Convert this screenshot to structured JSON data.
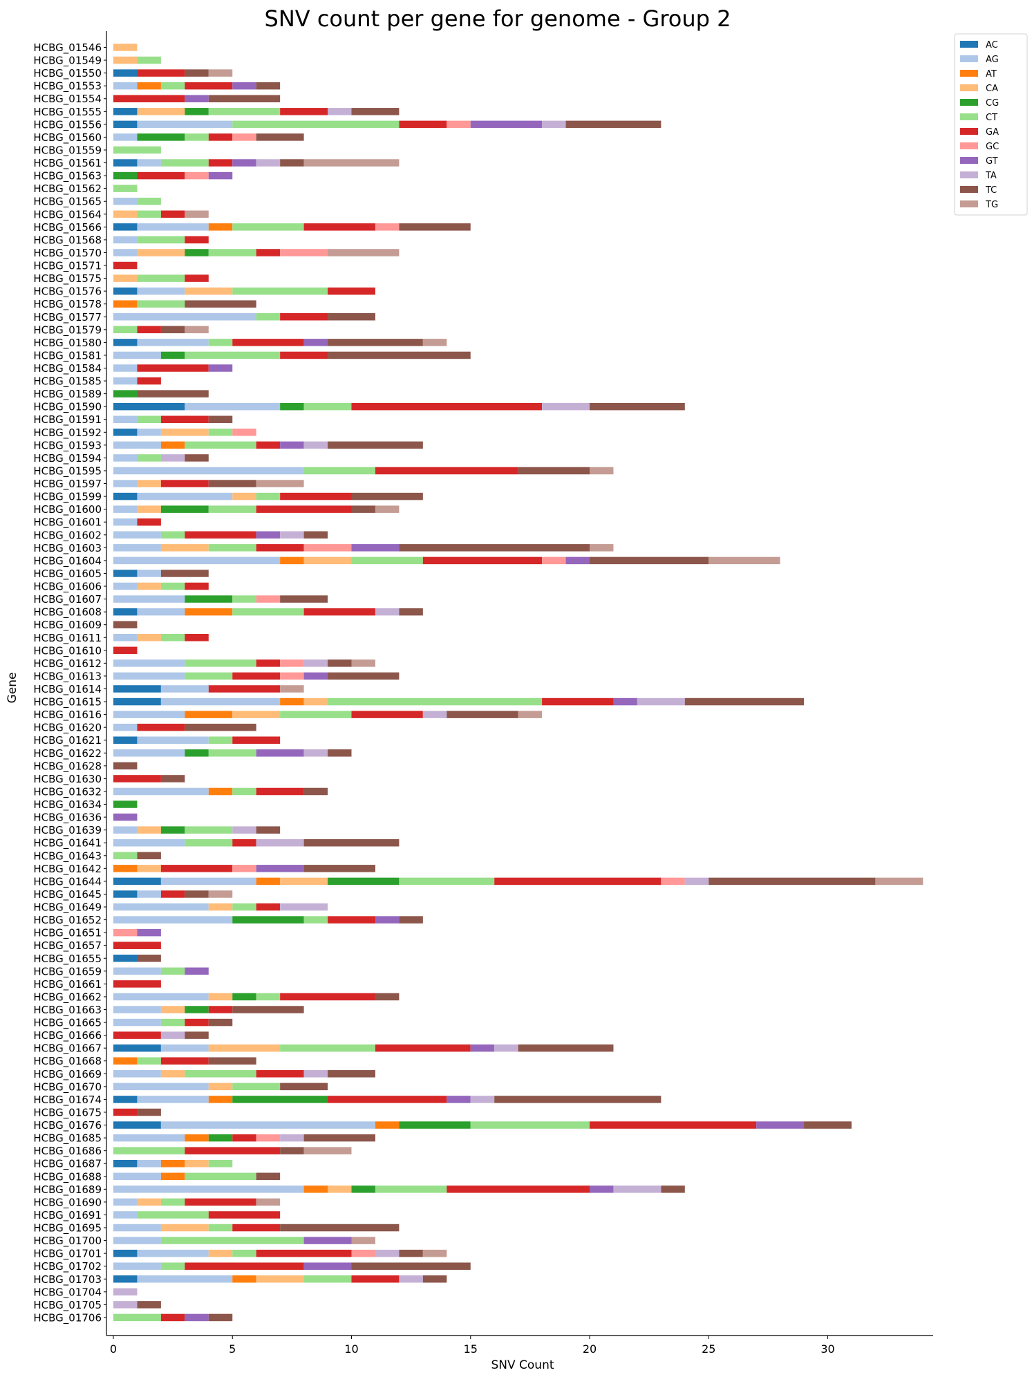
{
  "chart_data": {
    "type": "bar",
    "orientation": "horizontal",
    "stacked": true,
    "title": "SNV count per gene for genome - Group 2",
    "xlabel": "SNV Count",
    "ylabel": "Gene",
    "xlim": [
      0,
      34.4
    ],
    "xticks": [
      0,
      5,
      10,
      15,
      20,
      25,
      30
    ],
    "grid": false,
    "legend_position": "top-right, outside plot",
    "series_names": [
      "AC",
      "AG",
      "AT",
      "CA",
      "CG",
      "CT",
      "GA",
      "GC",
      "GT",
      "TA",
      "TC",
      "TG"
    ],
    "colors": [
      "#1f77b4",
      "#aec7e8",
      "#ff7f0e",
      "#ffbb78",
      "#2ca02c",
      "#98df8a",
      "#d62728",
      "#ff9896",
      "#9467bd",
      "#c5b0d5",
      "#8c564b",
      "#c49c94"
    ],
    "categories": [
      "HCBG_01546",
      "HCBG_01549",
      "HCBG_01550",
      "HCBG_01553",
      "HCBG_01554",
      "HCBG_01555",
      "HCBG_01556",
      "HCBG_01560",
      "HCBG_01559",
      "HCBG_01561",
      "HCBG_01563",
      "HCBG_01562",
      "HCBG_01565",
      "HCBG_01564",
      "HCBG_01566",
      "HCBG_01568",
      "HCBG_01570",
      "HCBG_01571",
      "HCBG_01575",
      "HCBG_01576",
      "HCBG_01578",
      "HCBG_01577",
      "HCBG_01579",
      "HCBG_01580",
      "HCBG_01581",
      "HCBG_01584",
      "HCBG_01585",
      "HCBG_01589",
      "HCBG_01590",
      "HCBG_01591",
      "HCBG_01592",
      "HCBG_01593",
      "HCBG_01594",
      "HCBG_01595",
      "HCBG_01597",
      "HCBG_01599",
      "HCBG_01600",
      "HCBG_01601",
      "HCBG_01602",
      "HCBG_01603",
      "HCBG_01604",
      "HCBG_01605",
      "HCBG_01606",
      "HCBG_01607",
      "HCBG_01608",
      "HCBG_01609",
      "HCBG_01611",
      "HCBG_01610",
      "HCBG_01612",
      "HCBG_01613",
      "HCBG_01614",
      "HCBG_01615",
      "HCBG_01616",
      "HCBG_01620",
      "HCBG_01621",
      "HCBG_01622",
      "HCBG_01628",
      "HCBG_01630",
      "HCBG_01632",
      "HCBG_01634",
      "HCBG_01636",
      "HCBG_01639",
      "HCBG_01641",
      "HCBG_01643",
      "HCBG_01642",
      "HCBG_01644",
      "HCBG_01645",
      "HCBG_01649",
      "HCBG_01652",
      "HCBG_01651",
      "HCBG_01657",
      "HCBG_01655",
      "HCBG_01659",
      "HCBG_01661",
      "HCBG_01662",
      "HCBG_01663",
      "HCBG_01665",
      "HCBG_01666",
      "HCBG_01667",
      "HCBG_01668",
      "HCBG_01669",
      "HCBG_01670",
      "HCBG_01674",
      "HCBG_01675",
      "HCBG_01676",
      "HCBG_01685",
      "HCBG_01686",
      "HCBG_01687",
      "HCBG_01688",
      "HCBG_01689",
      "HCBG_01690",
      "HCBG_01691",
      "HCBG_01695",
      "HCBG_01700",
      "HCBG_01701",
      "HCBG_01702",
      "HCBG_01703",
      "HCBG_01704",
      "HCBG_01705",
      "HCBG_01706"
    ],
    "rows": [
      [
        0,
        0,
        0,
        1,
        0,
        0,
        0,
        0,
        0,
        0,
        0,
        0
      ],
      [
        0,
        0,
        0,
        1,
        0,
        1,
        0,
        0,
        0,
        0,
        0,
        0
      ],
      [
        1,
        0,
        0,
        0,
        0,
        0,
        2,
        0,
        0,
        0,
        1,
        1
      ],
      [
        0,
        1,
        1,
        0,
        0,
        1,
        2,
        0,
        1,
        0,
        1,
        0
      ],
      [
        0,
        0,
        0,
        0,
        0,
        0,
        3,
        0,
        1,
        0,
        3,
        0
      ],
      [
        1,
        0,
        0,
        2,
        1,
        3,
        2,
        0,
        0,
        1,
        2,
        0
      ],
      [
        1,
        4,
        0,
        0,
        0,
        7,
        2,
        1,
        3,
        1,
        4,
        0
      ],
      [
        0,
        1,
        0,
        0,
        2,
        1,
        1,
        1,
        0,
        0,
        2,
        0
      ],
      [
        0,
        0,
        0,
        0,
        0,
        2,
        0,
        0,
        0,
        0,
        0,
        0
      ],
      [
        1,
        1,
        0,
        0,
        0,
        2,
        1,
        0,
        1,
        1,
        1,
        4
      ],
      [
        0,
        0,
        0,
        0,
        1,
        0,
        2,
        1,
        1,
        0,
        0,
        0
      ],
      [
        0,
        0,
        0,
        0,
        0,
        1,
        0,
        0,
        0,
        0,
        0,
        0
      ],
      [
        0,
        1,
        0,
        0,
        0,
        1,
        0,
        0,
        0,
        0,
        0,
        0
      ],
      [
        0,
        0,
        0,
        1,
        0,
        1,
        1,
        0,
        0,
        0,
        0,
        1
      ],
      [
        1,
        3,
        1,
        0,
        0,
        3,
        3,
        1,
        0,
        0,
        3,
        0
      ],
      [
        0,
        1,
        0,
        0,
        0,
        2,
        1,
        0,
        0,
        0,
        0,
        0
      ],
      [
        0,
        1,
        0,
        2,
        1,
        2,
        1,
        2,
        0,
        0,
        0,
        3
      ],
      [
        0,
        0,
        0,
        0,
        0,
        0,
        1,
        0,
        0,
        0,
        0,
        0
      ],
      [
        0,
        0,
        0,
        1,
        0,
        2,
        1,
        0,
        0,
        0,
        0,
        0
      ],
      [
        1,
        2,
        0,
        2,
        0,
        4,
        2,
        0,
        0,
        0,
        0,
        0
      ],
      [
        0,
        0,
        1,
        0,
        0,
        2,
        0,
        0,
        0,
        0,
        3,
        0
      ],
      [
        0,
        6,
        0,
        0,
        0,
        1,
        2,
        0,
        0,
        0,
        2,
        0
      ],
      [
        0,
        0,
        0,
        0,
        0,
        1,
        1,
        0,
        0,
        0,
        1,
        1
      ],
      [
        1,
        3,
        0,
        0,
        0,
        1,
        3,
        0,
        1,
        0,
        4,
        1
      ],
      [
        0,
        2,
        0,
        0,
        1,
        4,
        2,
        0,
        0,
        0,
        6,
        0
      ],
      [
        0,
        1,
        0,
        0,
        0,
        0,
        3,
        0,
        1,
        0,
        0,
        0
      ],
      [
        0,
        1,
        0,
        0,
        0,
        0,
        1,
        0,
        0,
        0,
        0,
        0
      ],
      [
        0,
        0,
        0,
        0,
        1,
        0,
        0,
        0,
        0,
        0,
        3,
        0
      ],
      [
        3,
        4,
        0,
        0,
        1,
        2,
        8,
        0,
        0,
        2,
        4,
        0
      ],
      [
        0,
        1,
        0,
        0,
        0,
        1,
        2,
        0,
        0,
        0,
        1,
        0
      ],
      [
        1,
        1,
        0,
        2,
        0,
        1,
        0,
        1,
        0,
        0,
        0,
        0
      ],
      [
        0,
        2,
        1,
        0,
        0,
        3,
        1,
        0,
        1,
        1,
        4,
        0
      ],
      [
        0,
        1,
        0,
        0,
        0,
        1,
        0,
        0,
        0,
        1,
        1,
        0
      ],
      [
        0,
        8,
        0,
        0,
        0,
        3,
        6,
        0,
        0,
        0,
        3,
        1
      ],
      [
        0,
        1,
        0,
        1,
        0,
        0,
        2,
        0,
        0,
        0,
        2,
        2
      ],
      [
        1,
        4,
        0,
        1,
        0,
        1,
        3,
        0,
        0,
        0,
        3,
        0
      ],
      [
        0,
        1,
        0,
        1,
        2,
        2,
        4,
        0,
        0,
        0,
        1,
        1
      ],
      [
        0,
        1,
        0,
        0,
        0,
        0,
        1,
        0,
        0,
        0,
        0,
        0
      ],
      [
        0,
        2,
        0,
        0,
        0,
        1,
        3,
        0,
        1,
        1,
        1,
        0
      ],
      [
        0,
        2,
        0,
        2,
        0,
        2,
        2,
        2,
        2,
        0,
        8,
        1
      ],
      [
        0,
        7,
        1,
        2,
        0,
        3,
        5,
        1,
        1,
        0,
        5,
        3
      ],
      [
        1,
        1,
        0,
        0,
        0,
        0,
        0,
        0,
        0,
        0,
        2,
        0
      ],
      [
        0,
        1,
        0,
        1,
        0,
        1,
        1,
        0,
        0,
        0,
        0,
        0
      ],
      [
        0,
        3,
        0,
        0,
        2,
        1,
        0,
        1,
        0,
        0,
        2,
        0
      ],
      [
        1,
        2,
        2,
        0,
        0,
        3,
        3,
        0,
        0,
        1,
        1,
        0
      ],
      [
        0,
        0,
        0,
        0,
        0,
        0,
        0,
        0,
        0,
        0,
        1,
        0
      ],
      [
        0,
        1,
        0,
        1,
        0,
        1,
        1,
        0,
        0,
        0,
        0,
        0
      ],
      [
        0,
        0,
        0,
        0,
        0,
        0,
        1,
        0,
        0,
        0,
        0,
        0
      ],
      [
        0,
        3,
        0,
        0,
        0,
        3,
        1,
        1,
        0,
        1,
        1,
        1
      ],
      [
        0,
        3,
        0,
        0,
        0,
        2,
        2,
        1,
        1,
        0,
        3,
        0
      ],
      [
        2,
        2,
        0,
        0,
        0,
        0,
        3,
        0,
        0,
        0,
        0,
        1
      ],
      [
        2,
        5,
        1,
        1,
        0,
        9,
        3,
        0,
        1,
        2,
        5,
        0
      ],
      [
        0,
        3,
        2,
        2,
        0,
        3,
        3,
        0,
        0,
        1,
        3,
        1
      ],
      [
        0,
        1,
        0,
        0,
        0,
        0,
        2,
        0,
        0,
        0,
        3,
        0
      ],
      [
        1,
        3,
        0,
        0,
        0,
        1,
        2,
        0,
        0,
        0,
        0,
        0
      ],
      [
        0,
        3,
        0,
        0,
        1,
        2,
        0,
        0,
        2,
        1,
        1,
        0
      ],
      [
        0,
        0,
        0,
        0,
        0,
        0,
        0,
        0,
        0,
        0,
        1,
        0
      ],
      [
        0,
        0,
        0,
        0,
        0,
        0,
        2,
        0,
        0,
        0,
        1,
        0
      ],
      [
        0,
        4,
        1,
        0,
        0,
        1,
        2,
        0,
        0,
        0,
        1,
        0
      ],
      [
        0,
        0,
        0,
        0,
        1,
        0,
        0,
        0,
        0,
        0,
        0,
        0
      ],
      [
        0,
        0,
        0,
        0,
        0,
        0,
        0,
        0,
        1,
        0,
        0,
        0
      ],
      [
        0,
        1,
        0,
        1,
        1,
        2,
        0,
        0,
        0,
        1,
        1,
        0
      ],
      [
        0,
        3,
        0,
        0,
        0,
        2,
        1,
        0,
        0,
        2,
        4,
        0
      ],
      [
        0,
        0,
        0,
        0,
        0,
        1,
        0,
        0,
        0,
        0,
        1,
        0
      ],
      [
        0,
        0,
        1,
        1,
        0,
        0,
        3,
        1,
        2,
        0,
        3,
        0
      ],
      [
        2,
        4,
        1,
        2,
        3,
        4,
        7,
        1,
        0,
        1,
        7,
        2
      ],
      [
        1,
        1,
        0,
        0,
        0,
        0,
        1,
        0,
        0,
        0,
        1,
        1
      ],
      [
        0,
        4,
        0,
        1,
        0,
        1,
        1,
        0,
        0,
        2,
        0,
        0
      ],
      [
        0,
        5,
        0,
        0,
        3,
        1,
        2,
        0,
        1,
        0,
        1,
        0
      ],
      [
        0,
        0,
        0,
        0,
        0,
        0,
        0,
        1,
        1,
        0,
        0,
        0
      ],
      [
        0,
        0,
        0,
        0,
        0,
        0,
        2,
        0,
        0,
        0,
        0,
        0
      ],
      [
        1,
        0,
        0,
        0,
        0,
        0,
        0,
        0,
        0,
        0,
        1,
        0
      ],
      [
        0,
        2,
        0,
        0,
        0,
        1,
        0,
        0,
        1,
        0,
        0,
        0
      ],
      [
        0,
        0,
        0,
        0,
        0,
        0,
        2,
        0,
        0,
        0,
        0,
        0
      ],
      [
        0,
        4,
        0,
        1,
        1,
        1,
        4,
        0,
        0,
        0,
        1,
        0
      ],
      [
        0,
        2,
        0,
        1,
        1,
        0,
        1,
        0,
        0,
        0,
        3,
        0
      ],
      [
        0,
        2,
        0,
        0,
        0,
        1,
        1,
        0,
        0,
        0,
        1,
        0
      ],
      [
        0,
        0,
        0,
        0,
        0,
        0,
        2,
        0,
        0,
        1,
        1,
        0
      ],
      [
        2,
        2,
        0,
        3,
        0,
        4,
        4,
        0,
        1,
        1,
        4,
        0
      ],
      [
        0,
        0,
        1,
        0,
        0,
        1,
        2,
        0,
        0,
        0,
        2,
        0
      ],
      [
        0,
        2,
        0,
        1,
        0,
        3,
        2,
        0,
        0,
        1,
        2,
        0
      ],
      [
        0,
        4,
        0,
        1,
        0,
        2,
        0,
        0,
        0,
        0,
        2,
        0
      ],
      [
        1,
        3,
        1,
        0,
        4,
        0,
        5,
        0,
        1,
        1,
        7,
        0
      ],
      [
        0,
        0,
        0,
        0,
        0,
        0,
        1,
        0,
        0,
        0,
        1,
        0
      ],
      [
        2,
        9,
        1,
        0,
        3,
        5,
        7,
        0,
        2,
        0,
        2,
        0
      ],
      [
        0,
        3,
        1,
        0,
        1,
        0,
        1,
        1,
        0,
        1,
        3,
        0
      ],
      [
        0,
        0,
        0,
        0,
        0,
        3,
        4,
        0,
        0,
        0,
        1,
        2
      ],
      [
        1,
        1,
        1,
        1,
        0,
        1,
        0,
        0,
        0,
        0,
        0,
        0
      ],
      [
        0,
        2,
        1,
        0,
        0,
        3,
        0,
        0,
        0,
        0,
        1,
        0
      ],
      [
        0,
        8,
        1,
        1,
        1,
        3,
        6,
        0,
        1,
        2,
        1,
        0
      ],
      [
        0,
        1,
        0,
        1,
        0,
        1,
        3,
        0,
        0,
        0,
        0,
        1
      ],
      [
        0,
        1,
        0,
        0,
        0,
        3,
        3,
        0,
        0,
        0,
        0,
        0
      ],
      [
        0,
        2,
        0,
        2,
        0,
        1,
        2,
        0,
        0,
        0,
        5,
        0
      ],
      [
        0,
        2,
        0,
        0,
        0,
        6,
        0,
        0,
        2,
        0,
        0,
        1
      ],
      [
        1,
        3,
        0,
        1,
        0,
        1,
        4,
        1,
        0,
        1,
        1,
        1
      ],
      [
        0,
        2,
        0,
        0,
        0,
        1,
        5,
        0,
        2,
        0,
        5,
        0
      ],
      [
        1,
        4,
        1,
        2,
        0,
        2,
        2,
        0,
        0,
        1,
        1,
        0
      ],
      [
        0,
        0,
        0,
        0,
        0,
        0,
        0,
        0,
        0,
        1,
        0,
        0
      ],
      [
        0,
        0,
        0,
        0,
        0,
        0,
        0,
        0,
        0,
        1,
        1,
        0
      ],
      [
        0,
        0,
        0,
        0,
        0,
        2,
        1,
        0,
        1,
        0,
        1,
        0
      ]
    ]
  }
}
